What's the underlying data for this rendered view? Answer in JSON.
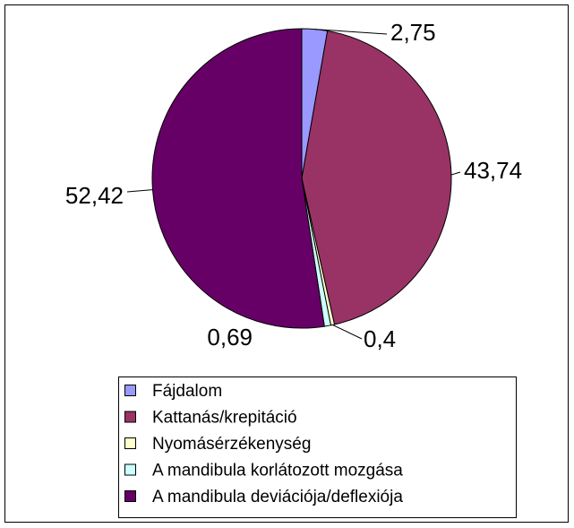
{
  "chart_data": {
    "type": "pie",
    "categories": [
      "Fájdalom",
      "Kattanás/krepitáció",
      "Nyomásérzékenység",
      "A mandibula korlátozott mozgása",
      "A mandibula deviációja/deflexiója"
    ],
    "values": [
      2.75,
      43.74,
      0.4,
      0.69,
      52.42
    ],
    "value_labels": [
      "2,75",
      "43,74",
      "0,4",
      "0,69",
      "52,42"
    ],
    "colors": [
      "#9999ff",
      "#993366",
      "#ffffcc",
      "#ccffff",
      "#660066"
    ],
    "legend": "bottom"
  }
}
